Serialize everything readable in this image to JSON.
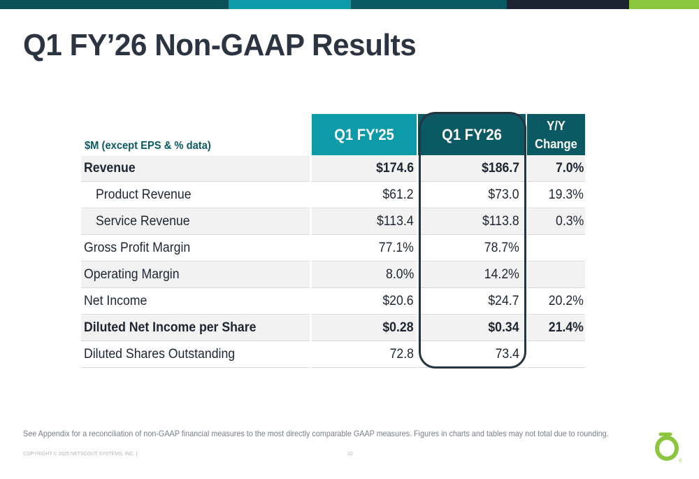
{
  "slide": {
    "title": "Q1 FY’26 Non-GAAP Results",
    "footnote": "See Appendix for a reconciliation of non-GAAP financial measures to the most directly comparable GAAP measures. Figures in charts and tables may not total due to rounding.",
    "copyright": "COPYRIGHT © 2025 NETSCOUT SYSTEMS, INC. |",
    "page_number": "10",
    "logo_mark": "®"
  },
  "colors": {
    "teal": "#0d9aa9",
    "dark_teal": "#0b5a63",
    "navy": "#1b2430",
    "green": "#8cc63f"
  },
  "table": {
    "unit_label": "$M (except EPS & % data)",
    "col1": "Q1 FY'25",
    "col2": "Q1 FY'26",
    "col3_line1": "Y/Y",
    "col3_line2": "Change",
    "rows": [
      {
        "label": "Revenue",
        "fy25": "$174.6",
        "fy26": "$186.7",
        "yoy": "7.0%"
      },
      {
        "label": "Product Revenue",
        "fy25": "$61.2",
        "fy26": "$73.0",
        "yoy": "19.3%"
      },
      {
        "label": "Service Revenue",
        "fy25": "$113.4",
        "fy26": "$113.8",
        "yoy": "0.3%"
      },
      {
        "label": "Gross Profit Margin",
        "fy25": "77.1%",
        "fy26": "78.7%",
        "yoy": ""
      },
      {
        "label": "Operating Margin",
        "fy25": "8.0%",
        "fy26": "14.2%",
        "yoy": ""
      },
      {
        "label": "Net Income",
        "fy25": "$20.6",
        "fy26": "$24.7",
        "yoy": "20.2%"
      },
      {
        "label": "Diluted Net Income per Share",
        "fy25": "$0.28",
        "fy26": "$0.34",
        "yoy": "21.4%"
      },
      {
        "label": "Diluted Shares Outstanding",
        "fy25": "72.8",
        "fy26": "73.4",
        "yoy": ""
      }
    ]
  }
}
